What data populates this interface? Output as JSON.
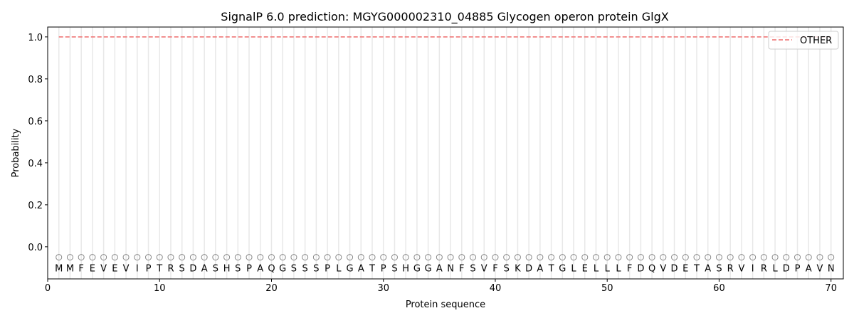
{
  "chart_data": {
    "type": "line",
    "title": "SignalP 6.0 prediction: MGYG000002310_04885 Glycogen operon protein GlgX",
    "xlabel": "Protein sequence",
    "ylabel": "Probability",
    "xlim": [
      0,
      71.1
    ],
    "ylim": [
      -0.153,
      1.047
    ],
    "xticks": [
      0,
      10,
      20,
      30,
      40,
      50,
      60,
      70
    ],
    "yticks": [
      "0.0",
      "0.2",
      "0.4",
      "0.6",
      "0.8",
      "1.0"
    ],
    "grid": "vertical lines at each residue",
    "legend": {
      "position": "top-right",
      "entries": [
        "OTHER"
      ]
    },
    "sequence": [
      "M",
      "M",
      "F",
      "E",
      "V",
      "E",
      "V",
      "I",
      "P",
      "T",
      "R",
      "S",
      "D",
      "A",
      "S",
      "H",
      "S",
      "P",
      "A",
      "Q",
      "G",
      "S",
      "S",
      "S",
      "P",
      "L",
      "G",
      "A",
      "T",
      "P",
      "S",
      "H",
      "G",
      "G",
      "A",
      "N",
      "F",
      "S",
      "V",
      "F",
      "S",
      "K",
      "D",
      "A",
      "T",
      "G",
      "L",
      "E",
      "L",
      "L",
      "L",
      "F",
      "D",
      "Q",
      "V",
      "D",
      "E",
      "T",
      "A",
      "S",
      "R",
      "V",
      "I",
      "R",
      "L",
      "D",
      "P",
      "A",
      "V",
      "N"
    ],
    "prediction_labels": "O",
    "series": [
      {
        "name": "OTHER",
        "color": "#f08080",
        "style": "dashed",
        "x_range": [
          1,
          70
        ],
        "value": 1.0
      }
    ]
  }
}
